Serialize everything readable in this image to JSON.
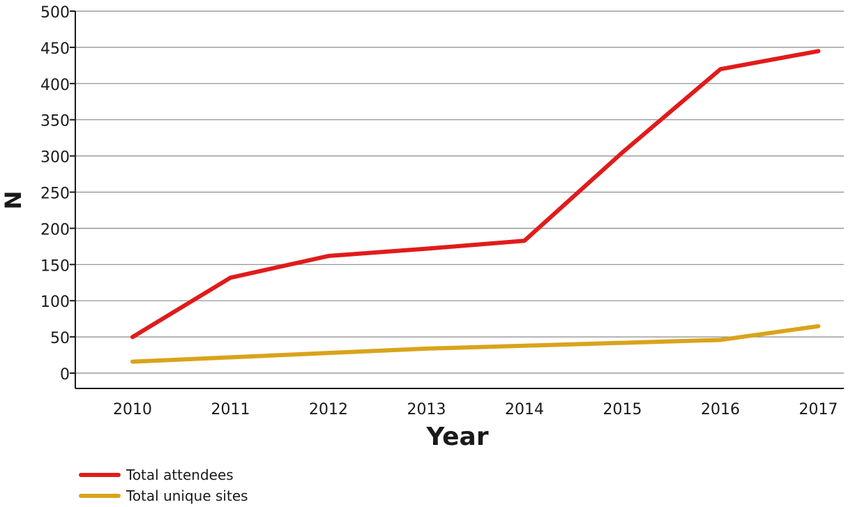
{
  "chart_data": {
    "type": "line",
    "xlabel": "Year",
    "ylabel": "N",
    "categories": [
      "2010",
      "2011",
      "2012",
      "2013",
      "2014",
      "2015",
      "2016",
      "2017"
    ],
    "ylim": [
      0,
      500
    ],
    "yticks": [
      0,
      50,
      100,
      150,
      200,
      250,
      300,
      350,
      400,
      450,
      500
    ],
    "grid": true,
    "legend_placement": "bottom-left",
    "series": [
      {
        "name": "Total attendees",
        "color": "#e11b1b",
        "values": [
          45,
          127,
          157,
          167,
          178,
          300,
          415,
          440
        ]
      },
      {
        "name": "Total unique sites",
        "color": "#d9a41c",
        "values": [
          11,
          17,
          23,
          29,
          33,
          37,
          41,
          60
        ]
      }
    ]
  }
}
